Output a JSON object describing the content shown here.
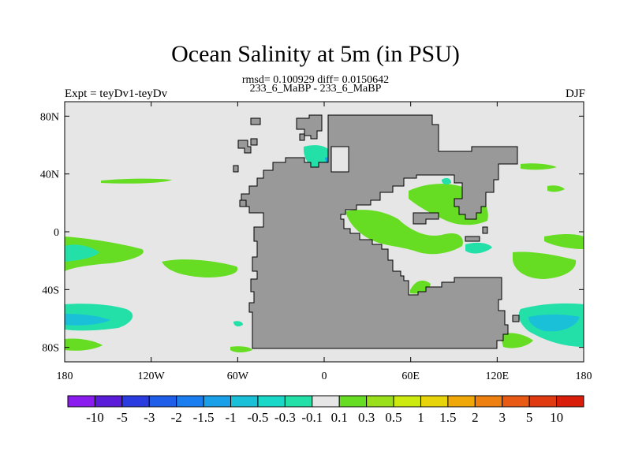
{
  "header": {
    "title": "Ocean Salinity at 5m (in PSU)",
    "stats_line": "rmsd= 0.100929 diff= 0.0150642",
    "center_label": "233_6_MaBP - 233_6_MaBP",
    "left_label": "Expt = teyDv1-teyDv",
    "right_label": "DJF"
  },
  "chart_data": {
    "type": "heatmap",
    "title": "Ocean Salinity at 5m (in PSU)",
    "xlim": [
      -180,
      180
    ],
    "ylim": [
      -90,
      90
    ],
    "x_ticks": [
      {
        "value": -180,
        "label": "180"
      },
      {
        "value": -120,
        "label": "120W"
      },
      {
        "value": -60,
        "label": "60W"
      },
      {
        "value": 0,
        "label": "0"
      },
      {
        "value": 60,
        "label": "60E"
      },
      {
        "value": 120,
        "label": "120E"
      },
      {
        "value": 180,
        "label": "180"
      }
    ],
    "y_ticks": [
      {
        "value": 80,
        "label": "80N"
      },
      {
        "value": 40,
        "label": "40N"
      },
      {
        "value": 0,
        "label": "0"
      },
      {
        "value": -40,
        "label": "40S"
      },
      {
        "value": -80,
        "label": "80S"
      }
    ],
    "colorbar": {
      "labels": [
        "-10",
        "-5",
        "-3",
        "-2",
        "-1.5",
        "-1",
        "-0.5",
        "-0.3",
        "-0.1",
        "0.1",
        "0.3",
        "0.5",
        "1",
        "1.5",
        "2",
        "3",
        "5",
        "10"
      ],
      "colors": [
        "#8a1cf0",
        "#5a1cd8",
        "#2a3ce0",
        "#1f5ee8",
        "#1a7ef0",
        "#1aa0e8",
        "#1ac0d8",
        "#1ad8c8",
        "#22e0a8",
        "#e6e6e6",
        "#66dd22",
        "#99e01a",
        "#ccea10",
        "#e8d40a",
        "#f0a808",
        "#ee8010",
        "#e85a14",
        "#e03a10",
        "#d81e0a"
      ]
    },
    "land_color": "#999999",
    "missing_color": "#e6e6e6"
  }
}
